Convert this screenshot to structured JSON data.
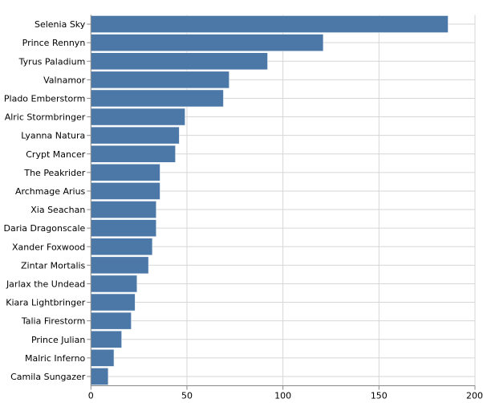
{
  "chart_data": {
    "type": "bar",
    "orientation": "horizontal",
    "categories": [
      "Selenia Sky",
      "Prince Rennyn",
      "Tyrus Paladium",
      "Valnamor",
      "Plado Emberstorm",
      "Alric Stormbringer",
      "Lyanna Natura",
      "Crypt Mancer",
      "The Peakrider",
      "Archmage Arius",
      "Xia Seachan",
      "Daria Dragonscale",
      "Xander Foxwood",
      "Zintar Mortalis",
      "Jarlax the Undead",
      "Kiara Lightbringer",
      "Talia Firestorm",
      "Prince Julian",
      "Malric Inferno",
      "Camila Sungazer"
    ],
    "values": [
      186,
      121,
      92,
      72,
      69,
      49,
      46,
      44,
      36,
      36,
      34,
      34,
      32,
      30,
      24,
      23,
      21,
      16,
      12,
      9
    ],
    "xlim": [
      0,
      200
    ],
    "xticks": [
      0,
      50,
      100,
      150,
      200
    ],
    "title": "",
    "xlabel": "",
    "ylabel": "",
    "grid": true,
    "color": "#4c78a8"
  }
}
